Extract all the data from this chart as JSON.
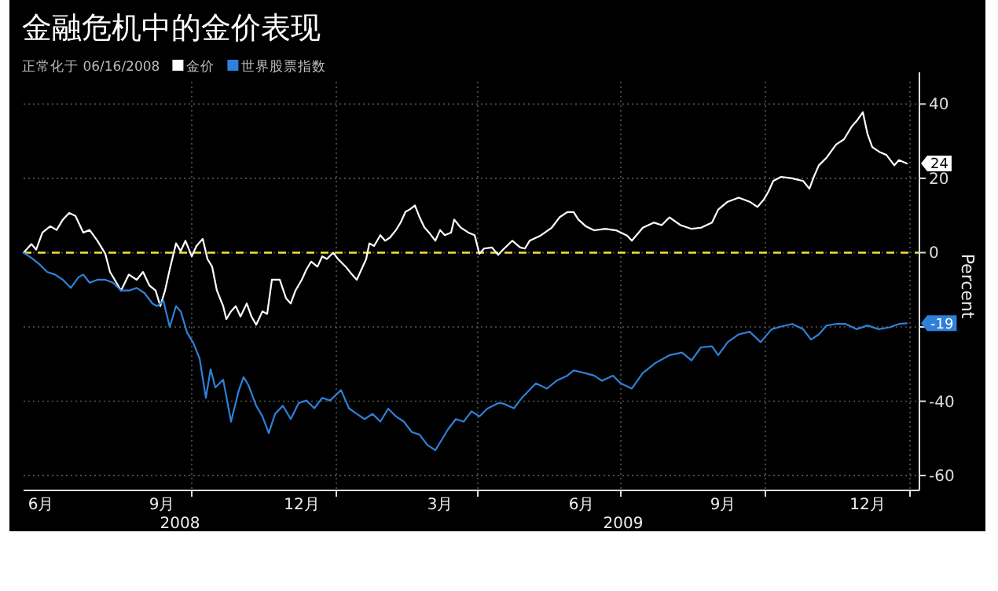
{
  "chart_data": {
    "type": "line",
    "title": "金融危机中的金价表现",
    "subtitle": "正常化于 06/16/2008",
    "ylabel": "Percent",
    "legend": "top left",
    "grid": true,
    "xlim": [
      "2008-06-16",
      "2010-01-07"
    ],
    "ylim": [
      -64,
      46
    ],
    "xticks": [
      {
        "value": "2008-06-27",
        "label": "6月"
      },
      {
        "value": "2008-09-12",
        "label": "9月"
      },
      {
        "value": "2008-10-01",
        "label": null
      },
      {
        "value": "2008-12-10",
        "label": "12月"
      },
      {
        "value": "2009-01-01",
        "label": null
      },
      {
        "value": "2009-03-08",
        "label": "3月"
      },
      {
        "value": "2009-04-01",
        "label": null
      },
      {
        "value": "2009-06-06",
        "label": "6月"
      },
      {
        "value": "2009-07-01",
        "label": null
      },
      {
        "value": "2009-09-04",
        "label": "9月"
      },
      {
        "value": "2009-10-01",
        "label": null
      },
      {
        "value": "2009-12-05",
        "label": "12月"
      },
      {
        "value": "2010-01-01",
        "label": null
      }
    ],
    "yticks": [
      -60,
      -40,
      {
        "value": -20,
        "label": null
      },
      0,
      20,
      40
    ],
    "ref_lines": [
      {
        "axis": "y",
        "value": 0,
        "color": "#f0e040",
        "line_style": "dashed"
      }
    ],
    "annotations": [
      "2008",
      "2009",
      {
        "text": "24",
        "x": "2009-12-30",
        "y": 24
      },
      {
        "text": "-19",
        "x": "2009-12-30",
        "y": -19
      }
    ],
    "series": [
      {
        "name": "金价",
        "color": "#ffffff",
        "x": [
          "2008-06-16",
          "2008-06-21",
          "2008-06-24",
          "2008-06-28",
          "2008-07-03",
          "2008-07-07",
          "2008-07-11",
          "2008-07-15",
          "2008-07-19",
          "2008-07-24",
          "2008-07-28",
          "2008-08-02",
          "2008-08-07",
          "2008-08-10",
          "2008-08-13",
          "2008-08-17",
          "2008-08-22",
          "2008-08-27",
          "2008-08-31",
          "2008-09-04",
          "2008-09-08",
          "2008-09-11",
          "2008-09-14",
          "2008-09-17",
          "2008-09-21",
          "2008-09-24",
          "2008-09-27",
          "2008-10-01",
          "2008-10-04",
          "2008-10-08",
          "2008-10-11",
          "2008-10-14",
          "2008-10-17",
          "2008-10-21",
          "2008-10-23",
          "2008-10-26",
          "2008-10-29",
          "2008-11-01",
          "2008-11-05",
          "2008-11-08",
          "2008-11-11",
          "2008-11-15",
          "2008-11-18",
          "2008-11-21",
          "2008-11-26",
          "2008-11-30",
          "2008-12-03",
          "2008-12-06",
          "2008-12-10",
          "2008-12-13",
          "2008-12-16",
          "2008-12-20",
          "2008-12-23",
          "2008-12-26",
          "2008-12-30",
          "2009-01-02",
          "2009-01-07",
          "2009-01-11",
          "2009-01-14",
          "2009-01-17",
          "2009-01-20",
          "2009-01-22",
          "2009-01-25",
          "2009-01-29",
          "2009-02-01",
          "2009-02-04",
          "2009-02-08",
          "2009-02-11",
          "2009-02-14",
          "2009-02-17",
          "2009-02-20",
          "2009-02-23",
          "2009-02-26",
          "2009-03-01",
          "2009-03-05",
          "2009-03-08",
          "2009-03-11",
          "2009-03-15",
          "2009-03-17",
          "2009-03-21",
          "2009-03-26",
          "2009-03-30",
          "2009-04-02",
          "2009-04-05",
          "2009-04-10",
          "2009-04-14",
          "2009-04-17",
          "2009-04-23",
          "2009-04-28",
          "2009-05-01",
          "2009-05-04",
          "2009-05-11",
          "2009-05-18",
          "2009-05-23",
          "2009-05-28",
          "2009-06-01",
          "2009-06-04",
          "2009-06-09",
          "2009-06-14",
          "2009-06-21",
          "2009-06-28",
          "2009-07-05",
          "2009-07-08",
          "2009-07-15",
          "2009-07-22",
          "2009-07-27",
          "2009-08-01",
          "2009-08-08",
          "2009-08-15",
          "2009-08-21",
          "2009-08-28",
          "2009-09-01",
          "2009-09-07",
          "2009-09-14",
          "2009-09-21",
          "2009-09-26",
          "2009-09-30",
          "2009-10-03",
          "2009-10-06",
          "2009-10-11",
          "2009-10-18",
          "2009-10-25",
          "2009-10-29",
          "2009-11-01",
          "2009-11-04",
          "2009-11-09",
          "2009-11-15",
          "2009-11-20",
          "2009-11-25",
          "2009-11-28",
          "2009-12-02",
          "2009-12-05",
          "2009-12-08",
          "2009-12-13",
          "2009-12-17",
          "2009-12-22",
          "2009-12-25",
          "2009-12-30"
        ],
        "values": [
          0.0,
          2.3,
          0.8,
          5.4,
          7.1,
          6.1,
          8.9,
          10.7,
          9.9,
          5.4,
          6.1,
          3.2,
          -0.3,
          -5.2,
          -7.3,
          -10.2,
          -5.9,
          -7.3,
          -5.2,
          -8.8,
          -10.2,
          -14.4,
          -10.2,
          -4.5,
          2.5,
          0.4,
          3.2,
          -1.0,
          1.8,
          3.7,
          -1.7,
          -3.8,
          -10.2,
          -14.4,
          -17.9,
          -15.8,
          -14.4,
          -17.2,
          -13.7,
          -17.2,
          -19.4,
          -15.8,
          -16.5,
          -7.3,
          -7.3,
          -12.3,
          -13.7,
          -10.2,
          -7.3,
          -4.5,
          -2.4,
          -3.8,
          -1.0,
          -1.7,
          0.0,
          -1.7,
          -3.8,
          -5.9,
          -7.3,
          -4.5,
          -1.7,
          2.5,
          1.8,
          4.7,
          3.2,
          4.0,
          6.1,
          8.2,
          11.0,
          11.7,
          12.7,
          9.5,
          6.8,
          5.4,
          3.2,
          6.1,
          4.7,
          5.4,
          8.9,
          6.8,
          5.4,
          4.7,
          -0.3,
          1.1,
          1.4,
          -0.6,
          0.8,
          3.2,
          1.4,
          1.1,
          3.2,
          4.6,
          6.7,
          9.5,
          10.9,
          10.9,
          8.9,
          7.0,
          6.0,
          6.4,
          6.0,
          4.6,
          3.2,
          6.7,
          8.1,
          7.4,
          9.5,
          7.4,
          6.4,
          6.7,
          8.1,
          11.6,
          13.7,
          14.8,
          13.7,
          12.3,
          14.3,
          16.5,
          19.3,
          20.4,
          20.0,
          19.3,
          17.2,
          20.6,
          23.5,
          25.6,
          29.1,
          30.5,
          34.0,
          35.4,
          37.8,
          31.9,
          28.4,
          27.0,
          26.3,
          23.5,
          24.9,
          24
        ]
      },
      {
        "name": "世界股票指数",
        "color": "#2f80d8",
        "x": [
          "2008-06-16",
          "2008-06-21",
          "2008-06-26",
          "2008-07-01",
          "2008-07-06",
          "2008-07-11",
          "2008-07-16",
          "2008-07-21",
          "2008-07-24",
          "2008-07-28",
          "2008-08-02",
          "2008-08-07",
          "2008-08-12",
          "2008-08-17",
          "2008-08-22",
          "2008-08-27",
          "2008-09-01",
          "2008-09-06",
          "2008-09-09",
          "2008-09-13",
          "2008-09-17",
          "2008-09-21",
          "2008-09-24",
          "2008-09-28",
          "2008-10-02",
          "2008-10-06",
          "2008-10-10",
          "2008-10-13",
          "2008-10-16",
          "2008-10-21",
          "2008-10-26",
          "2008-10-31",
          "2008-11-03",
          "2008-11-06",
          "2008-11-11",
          "2008-11-15",
          "2008-11-19",
          "2008-11-23",
          "2008-11-28",
          "2008-12-03",
          "2008-12-08",
          "2008-12-13",
          "2008-12-18",
          "2008-12-23",
          "2008-12-28",
          "2009-01-04",
          "2009-01-09",
          "2009-01-14",
          "2009-01-19",
          "2009-01-24",
          "2009-01-29",
          "2009-02-03",
          "2009-02-08",
          "2009-02-13",
          "2009-02-18",
          "2009-02-23",
          "2009-02-28",
          "2009-03-05",
          "2009-03-08",
          "2009-03-13",
          "2009-03-18",
          "2009-03-23",
          "2009-03-28",
          "2009-04-02",
          "2009-04-07",
          "2009-04-14",
          "2009-04-17",
          "2009-04-24",
          "2009-04-29",
          "2009-05-04",
          "2009-05-08",
          "2009-05-15",
          "2009-05-21",
          "2009-05-28",
          "2009-06-01",
          "2009-06-08",
          "2009-06-14",
          "2009-06-19",
          "2009-06-26",
          "2009-07-01",
          "2009-07-08",
          "2009-07-15",
          "2009-07-23",
          "2009-08-01",
          "2009-08-09",
          "2009-08-15",
          "2009-08-21",
          "2009-08-28",
          "2009-09-01",
          "2009-09-07",
          "2009-09-14",
          "2009-09-21",
          "2009-09-28",
          "2009-10-05",
          "2009-10-11",
          "2009-10-18",
          "2009-10-25",
          "2009-10-30",
          "2009-11-04",
          "2009-11-09",
          "2009-11-15",
          "2009-11-21",
          "2009-11-28",
          "2009-12-05",
          "2009-12-12",
          "2009-12-19",
          "2009-12-25",
          "2009-12-30"
        ],
        "values": [
          0.0,
          -1.4,
          -3.1,
          -5.2,
          -5.9,
          -7.3,
          -9.5,
          -6.6,
          -5.9,
          -8.1,
          -7.3,
          -7.3,
          -8.1,
          -10.2,
          -10.2,
          -9.5,
          -10.9,
          -13.7,
          -14.4,
          -13.0,
          -20.0,
          -14.4,
          -15.8,
          -21.5,
          -24.3,
          -28.5,
          -39.1,
          -31.4,
          -36.3,
          -34.2,
          -45.5,
          -37.0,
          -33.5,
          -35.6,
          -41.2,
          -44.1,
          -48.6,
          -43.4,
          -41.2,
          -44.8,
          -40.5,
          -39.8,
          -41.9,
          -39.1,
          -39.8,
          -37.0,
          -41.9,
          -43.4,
          -44.8,
          -43.4,
          -45.5,
          -42.0,
          -44.1,
          -45.5,
          -48.3,
          -49.0,
          -51.8,
          -53.2,
          -51.1,
          -47.6,
          -44.8,
          -45.5,
          -42.7,
          -44.1,
          -42.0,
          -40.5,
          -40.6,
          -41.9,
          -39.1,
          -36.9,
          -35.2,
          -36.6,
          -34.5,
          -33.1,
          -31.7,
          -32.4,
          -33.1,
          -34.5,
          -33.1,
          -35.2,
          -36.6,
          -32.4,
          -29.7,
          -27.6,
          -26.9,
          -29.0,
          -25.5,
          -25.2,
          -27.6,
          -24.1,
          -22.0,
          -21.3,
          -24.1,
          -20.6,
          -19.9,
          -19.2,
          -20.6,
          -23.4,
          -22.0,
          -19.6,
          -19.2,
          -19.2,
          -20.6,
          -19.6,
          -20.6,
          -20.1,
          -19.2,
          -19
        ]
      }
    ]
  }
}
